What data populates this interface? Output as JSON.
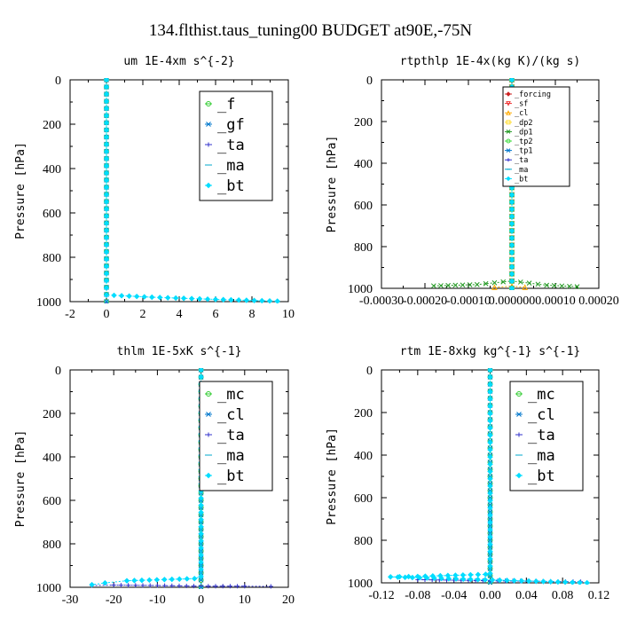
{
  "figure_title": "134.flthist.taus_tuning00  BUDGET at90E,-75N",
  "chart_data": [
    {
      "type": "line",
      "title": "um  1E-4xm s^{-2}",
      "ylabel": "Pressure [hPa]",
      "xlim": [
        -2,
        10
      ],
      "ylim": [
        1000,
        0
      ],
      "xticks": [
        "-2",
        "0",
        "2",
        "4",
        "6",
        "8",
        "10"
      ],
      "yticks": [
        "0",
        "200",
        "400",
        "600",
        "800",
        "1000"
      ],
      "legend": "top-right",
      "legend_style": "big",
      "series": [
        {
          "name": "_f",
          "color": "#33cc33",
          "marker": "circle",
          "x": [
            0,
            0
          ],
          "y": [
            0,
            1000
          ]
        },
        {
          "name": "_gf",
          "color": "#0077cc",
          "marker": "x",
          "x": [
            0,
            0
          ],
          "y": [
            0,
            1000
          ]
        },
        {
          "name": "_ta",
          "color": "#3333cc",
          "marker": "plus",
          "x": [
            0,
            0
          ],
          "y": [
            0,
            1000
          ]
        },
        {
          "name": "_ma",
          "color": "#00aacc",
          "marker": "dash",
          "x": [
            0,
            0
          ],
          "y": [
            0,
            1000
          ]
        },
        {
          "name": "_bt",
          "color": "#00ddff",
          "marker": "diamond",
          "x": [
            0,
            0,
            2.5,
            6,
            9.4
          ],
          "y": [
            0,
            970,
            980,
            990,
            998
          ]
        }
      ]
    },
    {
      "type": "line",
      "title": "rtpthlp  1E-4x(kg K)/(kg s)",
      "ylabel": "Pressure [hPa]",
      "xlim": [
        -0.0003,
        0.0002
      ],
      "ylim": [
        1000,
        0
      ],
      "xticks": [
        "-0.00030",
        "-0.00020",
        "-0.00010",
        "0.000000",
        "0.00010",
        "0.00020"
      ],
      "yticks": [
        "0",
        "200",
        "400",
        "600",
        "800",
        "1000"
      ],
      "legend": "top-right",
      "legend_style": "small",
      "series": [
        {
          "name": "_forcing",
          "color": "#cc2222",
          "marker": "diamond",
          "x": [
            0,
            0
          ],
          "y": [
            0,
            1000
          ]
        },
        {
          "name": "_sf",
          "color": "#ee3333",
          "marker": "triangle-down",
          "x": [
            0,
            0
          ],
          "y": [
            0,
            1000
          ]
        },
        {
          "name": "_cl",
          "color": "#ffaa00",
          "marker": "triangle-up",
          "x": [
            -4e-05,
            0,
            3e-05
          ],
          "y": [
            995,
            990,
            995
          ]
        },
        {
          "name": "_dp2",
          "color": "#ffdd33",
          "marker": "square",
          "x": [
            0,
            0
          ],
          "y": [
            0,
            1000
          ]
        },
        {
          "name": "_dp1",
          "color": "#229922",
          "marker": "x",
          "x": [
            -0.00018,
            -8e-05,
            0,
            8e-05,
            0.00015
          ],
          "y": [
            988,
            982,
            965,
            985,
            992
          ]
        },
        {
          "name": "_tp2",
          "color": "#44dd44",
          "marker": "circle",
          "x": [
            0,
            0
          ],
          "y": [
            0,
            1000
          ]
        },
        {
          "name": "_tp1",
          "color": "#0077cc",
          "marker": "x",
          "x": [
            0,
            0
          ],
          "y": [
            0,
            1000
          ]
        },
        {
          "name": "_ta",
          "color": "#3333cc",
          "marker": "plus",
          "x": [
            0,
            0
          ],
          "y": [
            0,
            1000
          ]
        },
        {
          "name": "_ma",
          "color": "#00aacc",
          "marker": "dash",
          "x": [
            0,
            0
          ],
          "y": [
            0,
            1000
          ]
        },
        {
          "name": "_bt",
          "color": "#00ddff",
          "marker": "diamond",
          "x": [
            0,
            0
          ],
          "y": [
            0,
            1000
          ]
        }
      ]
    },
    {
      "type": "line",
      "title": "thlm  1E-5xK s^{-1}",
      "ylabel": "Pressure [hPa]",
      "xlim": [
        -30,
        20
      ],
      "ylim": [
        1000,
        0
      ],
      "xticks": [
        "-30",
        "-20",
        "-10",
        "0",
        "10",
        "20"
      ],
      "yticks": [
        "0",
        "200",
        "400",
        "600",
        "800",
        "1000"
      ],
      "legend": "top-right",
      "legend_style": "big",
      "series": [
        {
          "name": "_mc",
          "color": "#33cc33",
          "marker": "circle",
          "x": [
            0,
            0
          ],
          "y": [
            0,
            1000
          ]
        },
        {
          "name": "_cl",
          "color": "#0077cc",
          "marker": "x",
          "x": [
            0,
            0
          ],
          "y": [
            0,
            1000
          ]
        },
        {
          "name": "_ta",
          "color": "#3333cc",
          "marker": "plus",
          "x": [
            -25,
            -20,
            -10,
            0,
            10,
            16
          ],
          "y": [
            992,
            990,
            992,
            995,
            995,
            996
          ]
        },
        {
          "name": "_ma",
          "color": "#00aacc",
          "marker": "dash",
          "x": [
            0,
            0
          ],
          "y": [
            0,
            1000
          ]
        },
        {
          "name": "_bt",
          "color": "#00ddff",
          "marker": "diamond",
          "x": [
            0,
            0,
            -1.5,
            -17,
            -22,
            -25
          ],
          "y": [
            0,
            950,
            960,
            970,
            980,
            988
          ]
        }
      ]
    },
    {
      "type": "line",
      "title": "rtm  1E-8xkg kg^{-1} s^{-1}",
      "ylabel": "Pressure [hPa]",
      "xlim": [
        -0.12,
        0.12
      ],
      "ylim": [
        1000,
        0
      ],
      "xticks": [
        "-0.12",
        "-0.08",
        "-0.04",
        "0.00",
        "0.04",
        "0.08",
        "0.12"
      ],
      "yticks": [
        "0",
        "200",
        "400",
        "600",
        "800",
        "1000"
      ],
      "legend": "top-right",
      "legend_style": "big",
      "series": [
        {
          "name": "_mc",
          "color": "#33cc33",
          "marker": "circle",
          "x": [
            0,
            0
          ],
          "y": [
            0,
            1000
          ]
        },
        {
          "name": "_cl",
          "color": "#0077cc",
          "marker": "x",
          "x": [
            0,
            0
          ],
          "y": [
            0,
            1000
          ]
        },
        {
          "name": "_ta",
          "color": "#3333cc",
          "marker": "plus",
          "x": [
            -0.08,
            0,
            0.1
          ],
          "y": [
            985,
            990,
            995
          ]
        },
        {
          "name": "_ma",
          "color": "#00aacc",
          "marker": "dash",
          "x": [
            0,
            0
          ],
          "y": [
            0,
            1000
          ]
        },
        {
          "name": "_bt",
          "color": "#00ddff",
          "marker": "diamond",
          "x": [
            0,
            0,
            -0.005,
            -0.08,
            -0.11,
            0.107
          ],
          "y": [
            0,
            955,
            960,
            970,
            972,
            1000
          ]
        }
      ]
    }
  ]
}
